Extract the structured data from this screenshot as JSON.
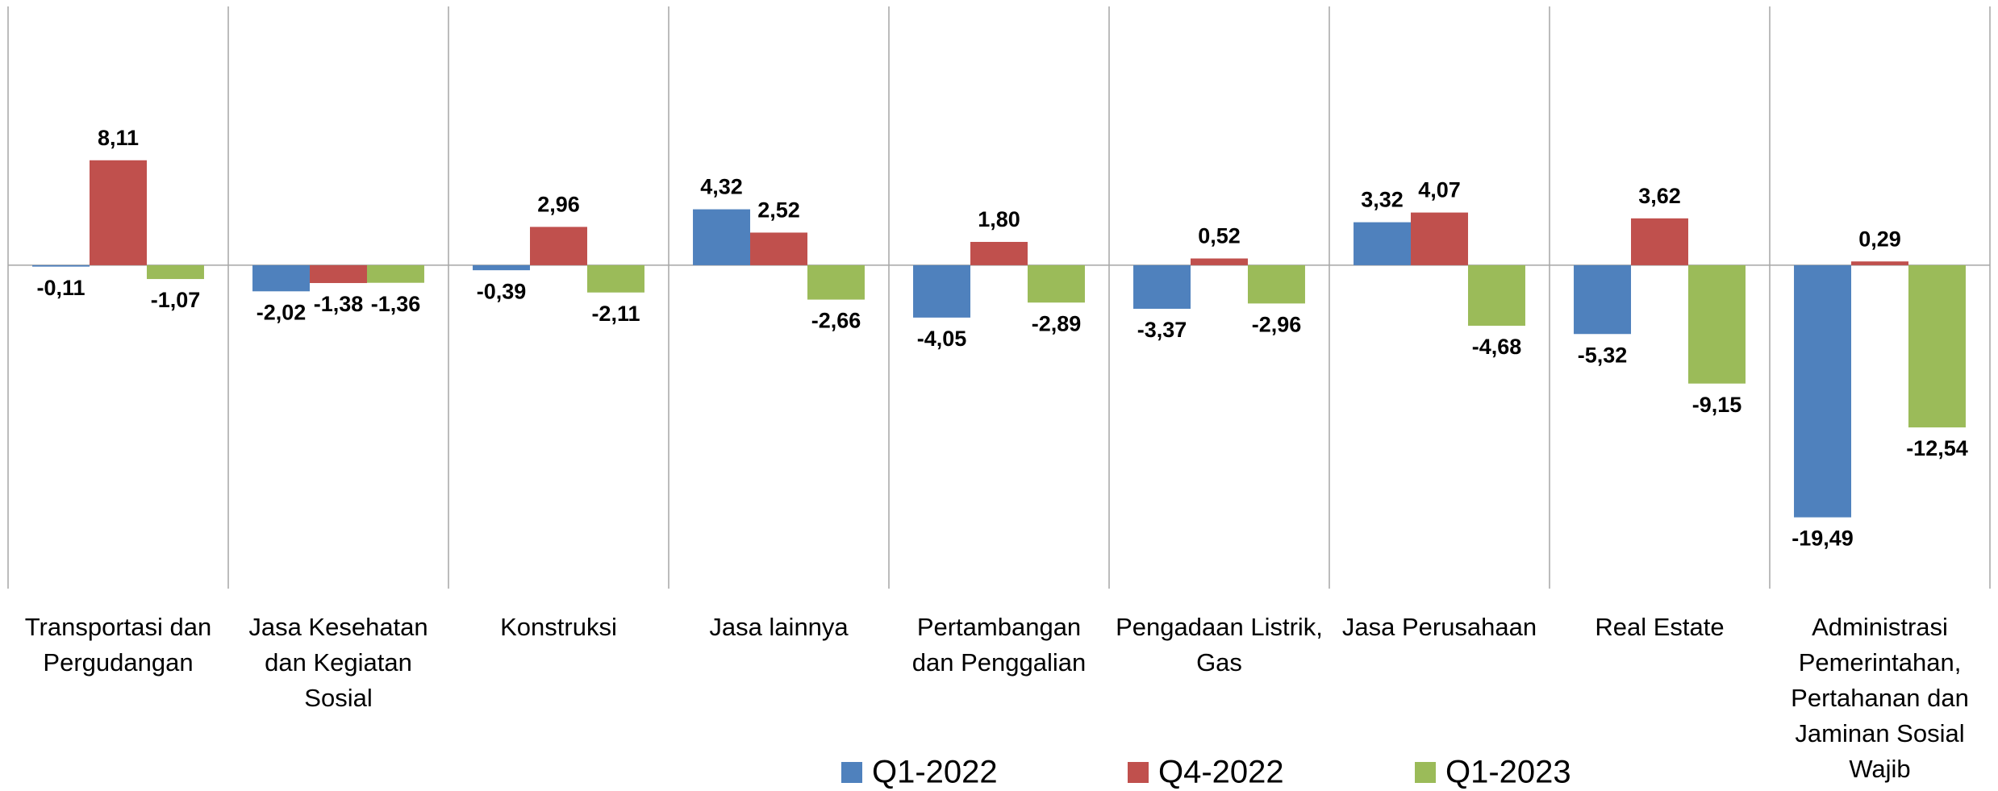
{
  "chart_data": {
    "type": "bar",
    "categories": [
      "Transportasi dan Pergudangan",
      "Jasa Kesehatan dan Kegiatan Sosial",
      "Konstruksi",
      "Jasa lainnya",
      "Pertambangan dan Penggalian",
      "Pengadaan Listrik, Gas",
      "Jasa Perusahaan",
      "Real Estate",
      "Administrasi Pemerintahan, Pertahanan dan Jaminan Sosial Wajib"
    ],
    "series": [
      {
        "name": "Q1-2022",
        "color": "#4f81bd",
        "values": [
          -0.11,
          -2.02,
          -0.39,
          4.32,
          -4.05,
          -3.37,
          3.32,
          -5.32,
          -19.49
        ],
        "value_labels": [
          "-0,11",
          "-2,02",
          "-0,39",
          "4,32",
          "-4,05",
          "-3,37",
          "3,32",
          "-5,32",
          "-19,49"
        ]
      },
      {
        "name": "Q4-2022",
        "color": "#c0504d",
        "values": [
          8.11,
          -1.38,
          2.96,
          2.52,
          1.8,
          0.52,
          4.07,
          3.62,
          0.29
        ],
        "value_labels": [
          "8,11",
          "-1,38",
          "2,96",
          "2,52",
          "1,80",
          "0,52",
          "4,07",
          "3,62",
          "0,29"
        ]
      },
      {
        "name": "Q1-2023",
        "color": "#9bbb59",
        "values": [
          -1.07,
          -1.36,
          -2.11,
          -2.66,
          -2.89,
          -2.96,
          -4.68,
          -9.15,
          -12.54
        ],
        "value_labels": [
          "-1,07",
          "-1,36",
          "-2,11",
          "-2,66",
          "-2,89",
          "-2,96",
          "-4,68",
          "-9,15",
          "-12,54"
        ]
      }
    ],
    "ylim": [
      -25,
      20
    ],
    "legend": "bottom"
  }
}
